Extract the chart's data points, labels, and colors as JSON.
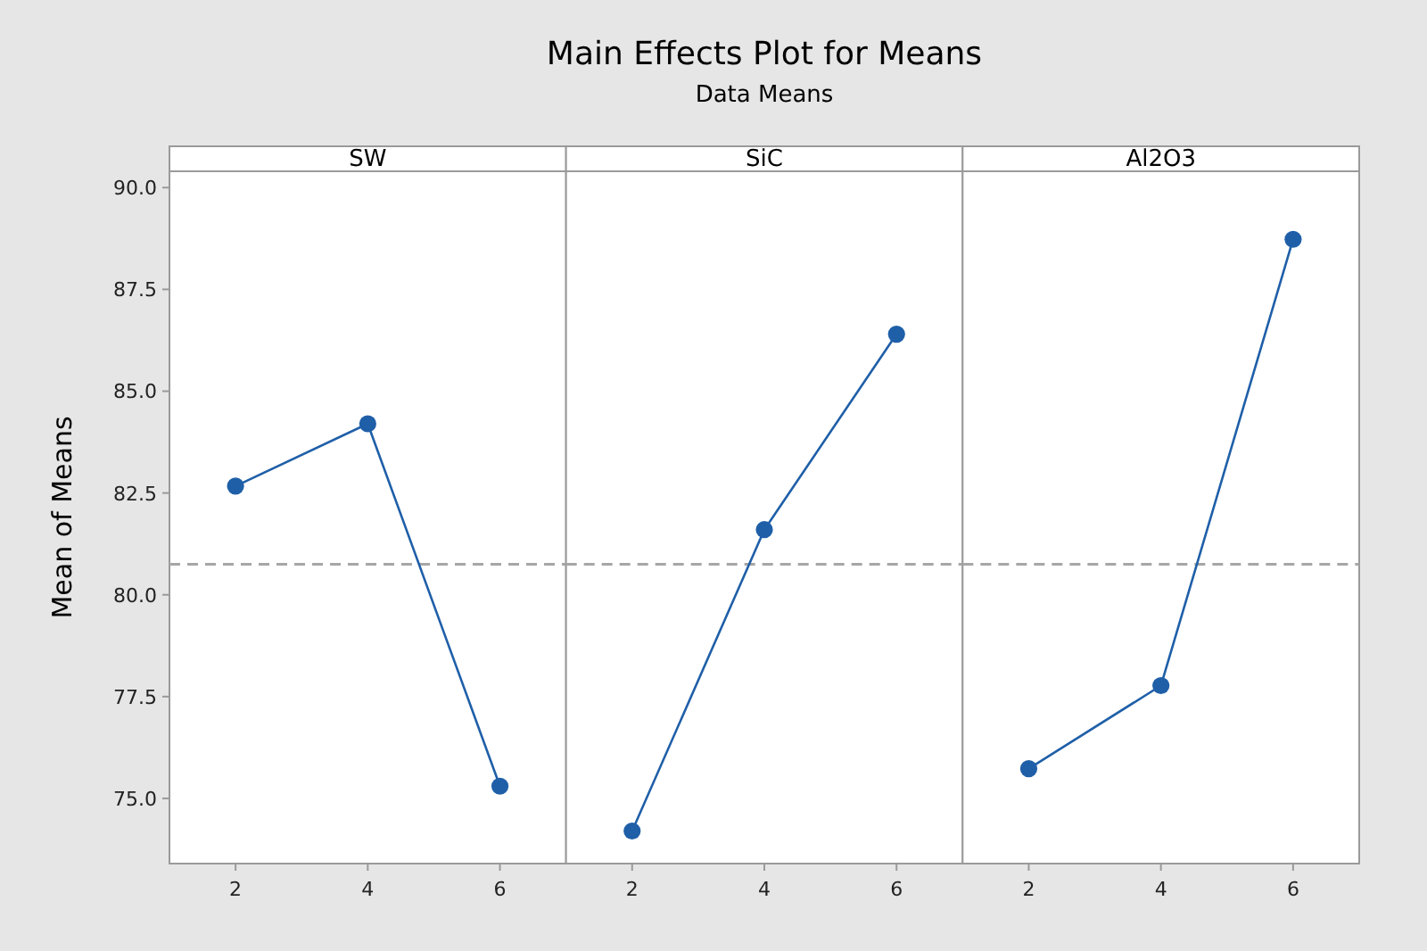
{
  "chart_data": [
    {
      "type": "line",
      "ylabel": "Mean of Means",
      "x": [
        2,
        4,
        6
      ],
      "xlim": [
        1,
        7
      ],
      "xticks": [
        2,
        4,
        6
      ],
      "ylim": [
        73.4,
        90.4
      ],
      "yticks": [
        {
          "value": 75,
          "label": "75.0"
        },
        77.5,
        {
          "value": 80,
          "label": "80.0"
        },
        82.5,
        {
          "value": 85,
          "label": "85.0"
        },
        87.5,
        {
          "value": 90,
          "label": "90.0"
        }
      ],
      "grid": false,
      "marker": "circle",
      "line_style": "solid",
      "series": [
        {
          "name": "SW",
          "color": "#1f5fa8",
          "values": [
            82.67,
            84.2,
            75.3
          ]
        }
      ],
      "ref_lines": [
        {
          "axis": "y",
          "value": 80.75,
          "color": "#a6a6a6",
          "line_style": "dashed"
        }
      ]
    },
    {
      "type": "line",
      "title": "Main Effects Plot for Means",
      "subtitle": "Data Means",
      "x": [
        2,
        4,
        6
      ],
      "xlim": [
        1,
        7
      ],
      "xticks": [
        2,
        4,
        6
      ],
      "ylim": [
        73.4,
        90.4
      ],
      "yticks": [
        75.0,
        77.5,
        80.0,
        82.5,
        85.0,
        87.5,
        90.0
      ],
      "tick_labels": "x",
      "grid": false,
      "marker": "circle",
      "line_style": "solid",
      "series": [
        {
          "name": "SiC",
          "color": "#1f5fa8",
          "values": [
            74.2,
            81.6,
            86.4
          ]
        }
      ],
      "ref_lines": [
        {
          "axis": "y",
          "value": 80.75,
          "color": "#a6a6a6",
          "line_style": "dashed"
        }
      ]
    },
    {
      "type": "line",
      "x": [
        2,
        4,
        6
      ],
      "xlim": [
        1,
        7
      ],
      "xticks": [
        2,
        4,
        6
      ],
      "ylim": [
        73.4,
        90.4
      ],
      "yticks": [
        75.0,
        77.5,
        80.0,
        82.5,
        85.0,
        87.5,
        90.0
      ],
      "tick_labels": "x",
      "grid": false,
      "marker": "circle",
      "line_style": "solid",
      "series": [
        {
          "name": "Al2O3",
          "color": "#1f5fa8",
          "values": [
            75.73,
            77.77,
            88.73
          ]
        }
      ],
      "ref_lines": [
        {
          "axis": "y",
          "value": 80.75,
          "color": "#a6a6a6",
          "line_style": "dashed"
        }
      ]
    }
  ]
}
